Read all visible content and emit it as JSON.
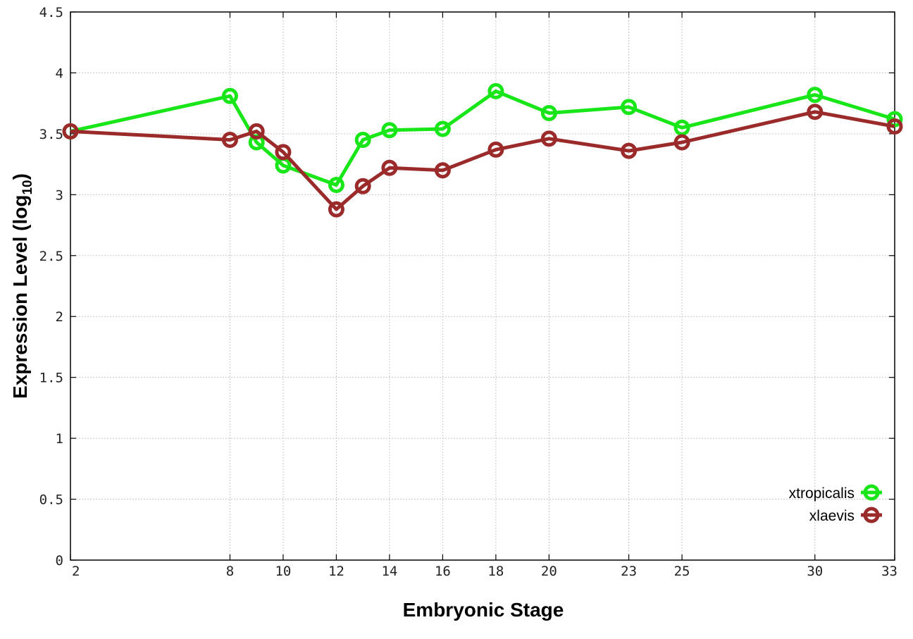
{
  "chart_data": {
    "type": "line",
    "xlabel": "Embryonic Stage",
    "ylabel": "Expression Level (log",
    "ylabel_sub": "10",
    "ylabel_close": ")",
    "xlim": [
      2,
      33
    ],
    "ylim": [
      0,
      4.5
    ],
    "x_ticks": [
      2,
      8,
      10,
      12,
      14,
      16,
      18,
      20,
      23,
      25,
      30,
      33
    ],
    "x_tick_labels": [
      "2",
      "8",
      "10",
      "12",
      "14",
      "16",
      "18",
      "20",
      "23",
      "25",
      "30",
      "33"
    ],
    "y_ticks": [
      0,
      0.5,
      1,
      1.5,
      2,
      2.5,
      3,
      3.5,
      4,
      4.5
    ],
    "y_tick_labels": [
      "0",
      "0.5",
      "1",
      "1.5",
      "2",
      "2.5",
      "3",
      "3.5",
      "4",
      "4.5"
    ],
    "grid": true,
    "legend_position": "bottom-right",
    "series": [
      {
        "name": "xtropicalis",
        "color": "#19e619",
        "x": [
          2,
          8,
          9,
          10,
          12,
          13,
          14,
          16,
          18,
          20,
          23,
          25,
          30,
          33
        ],
        "y": [
          3.52,
          3.81,
          3.43,
          3.24,
          3.08,
          3.45,
          3.53,
          3.54,
          3.85,
          3.67,
          3.72,
          3.55,
          3.82,
          3.62
        ]
      },
      {
        "name": "xlaevis",
        "color": "#9b2b2b",
        "x": [
          2,
          8,
          9,
          10,
          12,
          13,
          14,
          16,
          18,
          20,
          23,
          25,
          30,
          33
        ],
        "y": [
          3.52,
          3.45,
          3.52,
          3.35,
          2.88,
          3.07,
          3.22,
          3.2,
          3.37,
          3.46,
          3.36,
          3.43,
          3.68,
          3.56
        ]
      }
    ]
  }
}
